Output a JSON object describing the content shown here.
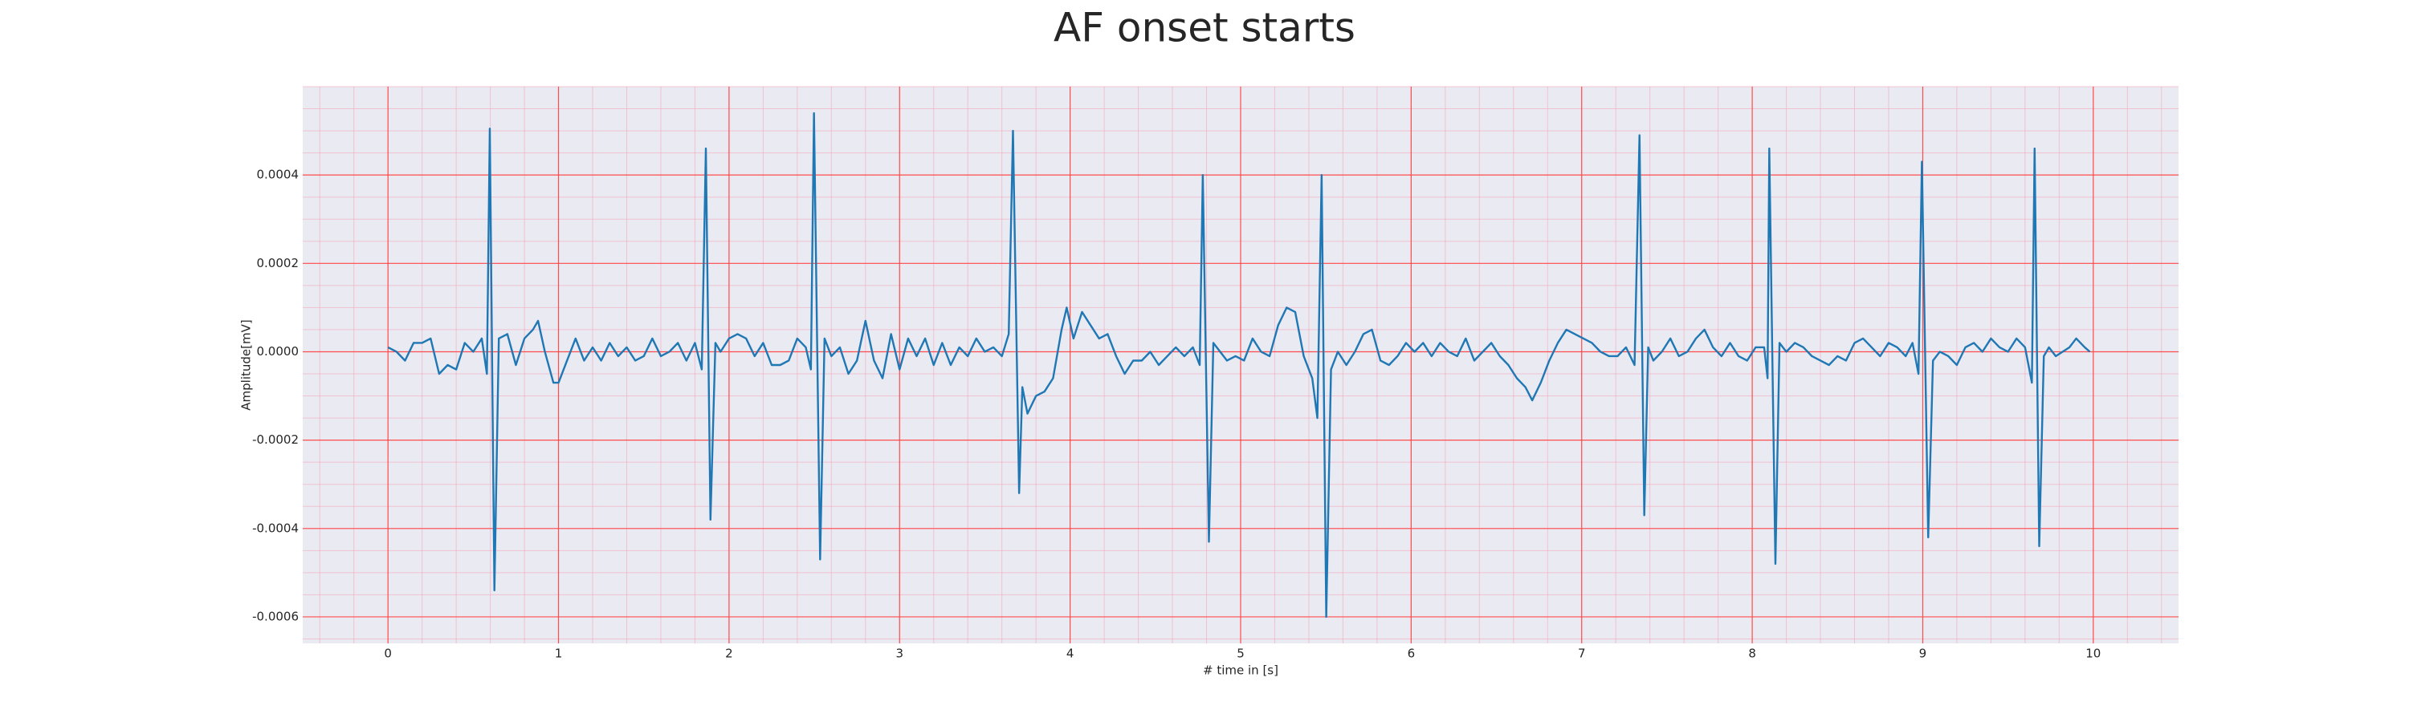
{
  "chart_data": {
    "type": "line",
    "title": "AF onset starts",
    "xlabel": "# time in [s]",
    "ylabel": "Amplitude[mV]",
    "color": "#1f77b4",
    "grid": true,
    "minor_grid": {
      "x_step": 0.2,
      "y_step": 5e-05
    },
    "xlim": [
      -0.5,
      10.5
    ],
    "ylim": [
      -0.00066,
      0.0006
    ],
    "xticks": [
      0,
      1,
      2,
      3,
      4,
      5,
      6,
      7,
      8,
      9,
      10
    ],
    "yticks": [
      -0.0006,
      -0.0004,
      -0.0002,
      {
        "value": 0,
        "label": "0.0000"
      },
      0.0002,
      0.0004
    ],
    "x": [
      0.0,
      0.05,
      0.1,
      0.15,
      0.2,
      0.25,
      0.3,
      0.35,
      0.4,
      0.45,
      0.5,
      0.55,
      0.58,
      0.597,
      0.624,
      0.65,
      0.7,
      0.75,
      0.8,
      0.85,
      0.88,
      0.92,
      0.97,
      1.0,
      1.05,
      1.1,
      1.15,
      1.2,
      1.25,
      1.3,
      1.35,
      1.4,
      1.45,
      1.5,
      1.55,
      1.6,
      1.65,
      1.7,
      1.75,
      1.8,
      1.84,
      1.864,
      1.891,
      1.92,
      1.95,
      2.0,
      2.05,
      2.1,
      2.15,
      2.2,
      2.25,
      2.3,
      2.35,
      2.4,
      2.45,
      2.48,
      2.498,
      2.534,
      2.56,
      2.6,
      2.65,
      2.7,
      2.75,
      2.8,
      2.85,
      2.9,
      2.95,
      3.0,
      3.05,
      3.1,
      3.15,
      3.2,
      3.25,
      3.3,
      3.35,
      3.4,
      3.45,
      3.5,
      3.55,
      3.6,
      3.64,
      3.665,
      3.701,
      3.72,
      3.75,
      3.8,
      3.85,
      3.9,
      3.95,
      3.98,
      4.02,
      4.07,
      4.12,
      4.17,
      4.22,
      4.27,
      4.32,
      4.37,
      4.42,
      4.47,
      4.52,
      4.57,
      4.62,
      4.67,
      4.72,
      4.76,
      4.778,
      4.814,
      4.84,
      4.88,
      4.92,
      4.97,
      5.02,
      5.07,
      5.12,
      5.17,
      5.22,
      5.27,
      5.32,
      5.37,
      5.42,
      5.45,
      5.475,
      5.502,
      5.53,
      5.57,
      5.62,
      5.67,
      5.72,
      5.77,
      5.82,
      5.87,
      5.92,
      5.97,
      6.02,
      6.07,
      6.12,
      6.17,
      6.22,
      6.27,
      6.32,
      6.37,
      6.42,
      6.47,
      6.52,
      6.57,
      6.62,
      6.67,
      6.71,
      6.76,
      6.81,
      6.86,
      6.91,
      6.96,
      7.01,
      7.06,
      7.11,
      7.16,
      7.21,
      7.26,
      7.31,
      7.339,
      7.367,
      7.39,
      7.42,
      7.47,
      7.52,
      7.57,
      7.62,
      7.67,
      7.72,
      7.77,
      7.82,
      7.87,
      7.92,
      7.97,
      8.02,
      8.07,
      8.09,
      8.1,
      8.136,
      8.16,
      8.2,
      8.25,
      8.3,
      8.35,
      8.4,
      8.45,
      8.5,
      8.55,
      8.6,
      8.65,
      8.7,
      8.75,
      8.8,
      8.85,
      8.9,
      8.94,
      8.975,
      8.995,
      9.032,
      9.06,
      9.1,
      9.15,
      9.2,
      9.25,
      9.3,
      9.35,
      9.4,
      9.45,
      9.5,
      9.55,
      9.6,
      9.64,
      9.656,
      9.683,
      9.71,
      9.74,
      9.78,
      9.82,
      9.86,
      9.9,
      9.95,
      9.98
    ],
    "values": [
      1e-05,
      0,
      -2e-05,
      2e-05,
      2e-05,
      3e-05,
      -5e-05,
      -3e-05,
      -4e-05,
      2e-05,
      0,
      3e-05,
      -5e-05,
      0.000505,
      -0.00054,
      3e-05,
      4e-05,
      -3e-05,
      3e-05,
      5e-05,
      7e-05,
      0,
      -7e-05,
      -7e-05,
      -2e-05,
      3e-05,
      -2e-05,
      1e-05,
      -2e-05,
      2e-05,
      -1e-05,
      1e-05,
      -2e-05,
      -1e-05,
      3e-05,
      -1e-05,
      0,
      2e-05,
      -2e-05,
      2e-05,
      -4e-05,
      0.00046,
      -0.00038,
      2e-05,
      0,
      3e-05,
      4e-05,
      3e-05,
      -1e-05,
      2e-05,
      -3e-05,
      -3e-05,
      -2e-05,
      3e-05,
      1e-05,
      -4e-05,
      0.00054,
      -0.00047,
      3e-05,
      -1e-05,
      1e-05,
      -5e-05,
      -2e-05,
      7e-05,
      -2e-05,
      -6e-05,
      4e-05,
      -4e-05,
      3e-05,
      -1e-05,
      3e-05,
      -3e-05,
      2e-05,
      -3e-05,
      1e-05,
      -1e-05,
      3e-05,
      0,
      1e-05,
      -1e-05,
      4e-05,
      0.0005,
      -0.00032,
      -8e-05,
      -0.00014,
      -0.0001,
      -9e-05,
      -6e-05,
      5e-05,
      0.0001,
      3e-05,
      9e-05,
      6e-05,
      3e-05,
      4e-05,
      -1e-05,
      -5e-05,
      -2e-05,
      -2e-05,
      0,
      -3e-05,
      -1e-05,
      1e-05,
      -1e-05,
      1e-05,
      -3e-05,
      0.0004,
      -0.00043,
      2e-05,
      0,
      -2e-05,
      -1e-05,
      -2e-05,
      3e-05,
      0,
      -1e-05,
      6e-05,
      0.0001,
      9e-05,
      -1e-05,
      -6e-05,
      -0.00015,
      0.0004,
      -0.0006,
      -4e-05,
      0,
      -3e-05,
      0,
      4e-05,
      5e-05,
      -2e-05,
      -3e-05,
      -1e-05,
      2e-05,
      0,
      2e-05,
      -1e-05,
      2e-05,
      0,
      -1e-05,
      3e-05,
      -2e-05,
      0,
      2e-05,
      -1e-05,
      -3e-05,
      -6e-05,
      -8e-05,
      -0.00011,
      -7e-05,
      -2e-05,
      2e-05,
      5e-05,
      4e-05,
      3e-05,
      2e-05,
      0,
      -1e-05,
      -1e-05,
      1e-05,
      -3e-05,
      0.00049,
      -0.00037,
      1e-05,
      -2e-05,
      0,
      3e-05,
      -1e-05,
      0,
      3e-05,
      5e-05,
      1e-05,
      -1e-05,
      2e-05,
      -1e-05,
      -2e-05,
      1e-05,
      1e-05,
      -6e-05,
      0.00046,
      -0.00048,
      2e-05,
      0,
      2e-05,
      1e-05,
      -1e-05,
      -2e-05,
      -3e-05,
      -1e-05,
      -2e-05,
      2e-05,
      3e-05,
      1e-05,
      -1e-05,
      2e-05,
      1e-05,
      -1e-05,
      2e-05,
      -5e-05,
      0.00043,
      -0.00042,
      -2e-05,
      0,
      -1e-05,
      -3e-05,
      1e-05,
      2e-05,
      0,
      3e-05,
      1e-05,
      0,
      3e-05,
      1e-05,
      -7e-05,
      0.00046,
      -0.00044,
      -1e-05,
      1e-05,
      -1e-05,
      0,
      1e-05,
      3e-05,
      1e-05,
      0
    ]
  }
}
